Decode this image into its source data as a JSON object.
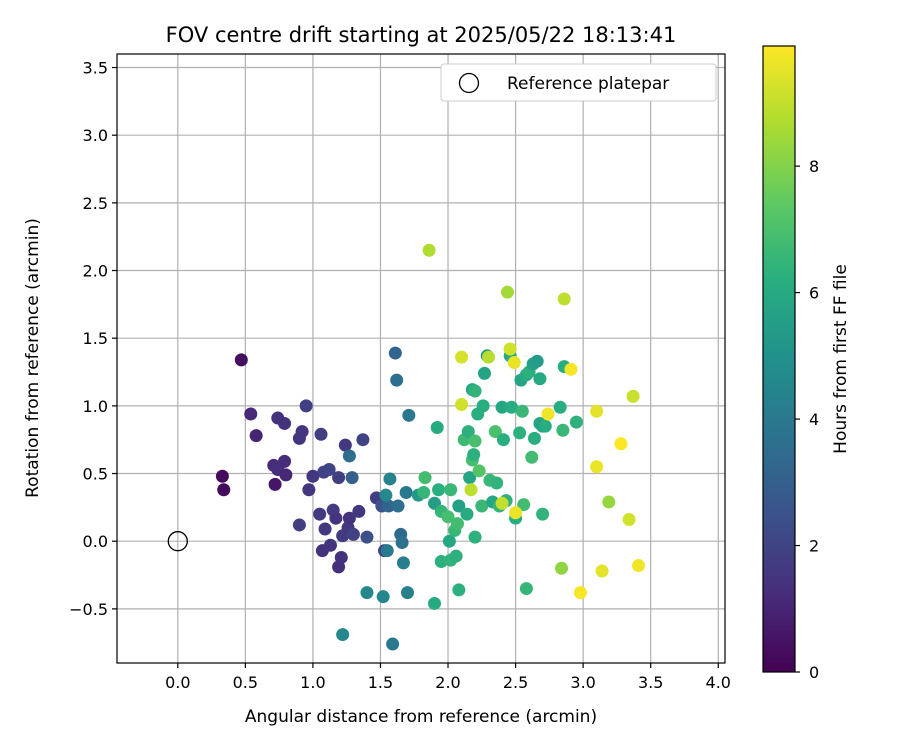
{
  "chart_data": {
    "type": "scatter",
    "title": "FOV centre drift starting at 2025/05/22 18:13:41",
    "xlabel": "Angular distance from reference (arcmin)",
    "ylabel": "Rotation from reference (arcmin)",
    "xlim": [
      -0.45,
      4.05
    ],
    "ylim": [
      -0.9,
      3.6
    ],
    "xticks": [
      0.0,
      0.5,
      1.0,
      1.5,
      2.0,
      2.5,
      3.0,
      3.5,
      4.0
    ],
    "xtick_labels": [
      "0.0",
      "0.5",
      "1.0",
      "1.5",
      "2.0",
      "2.5",
      "3.0",
      "3.5",
      "4.0"
    ],
    "yticks": [
      -0.5,
      0.0,
      0.5,
      1.0,
      1.5,
      2.0,
      2.5,
      3.0,
      3.5
    ],
    "ytick_labels": [
      "−0.5",
      "0.0",
      "0.5",
      "1.0",
      "1.5",
      "2.0",
      "2.5",
      "3.0",
      "3.5"
    ],
    "grid": true,
    "legend": {
      "placement": "top-right",
      "entries": [
        "Reference platepar"
      ]
    },
    "reference_point": {
      "x": 0.0,
      "y": 0.0
    },
    "colorbar": {
      "label": "Hours from first FF file",
      "range": [
        0,
        9.9
      ],
      "ticks": [
        0,
        2,
        4,
        6,
        8
      ],
      "tick_labels": [
        "0",
        "2",
        "4",
        "6",
        "8"
      ],
      "colormap": "viridis"
    },
    "points": [
      {
        "x": 0.33,
        "y": 0.48,
        "c": 0.3
      },
      {
        "x": 0.34,
        "y": 0.38,
        "c": 0.3
      },
      {
        "x": 0.47,
        "y": 1.34,
        "c": 0.4
      },
      {
        "x": 0.72,
        "y": 0.42,
        "c": 0.6
      },
      {
        "x": 0.54,
        "y": 0.94,
        "c": 1.1
      },
      {
        "x": 0.58,
        "y": 0.78,
        "c": 1.0
      },
      {
        "x": 0.71,
        "y": 0.56,
        "c": 1.2
      },
      {
        "x": 0.74,
        "y": 0.53,
        "c": 1.3
      },
      {
        "x": 0.74,
        "y": 0.91,
        "c": 1.4
      },
      {
        "x": 0.79,
        "y": 0.87,
        "c": 1.4
      },
      {
        "x": 0.8,
        "y": 0.49,
        "c": 1.1
      },
      {
        "x": 0.79,
        "y": 0.59,
        "c": 1.2
      },
      {
        "x": 0.9,
        "y": 0.76,
        "c": 1.5
      },
      {
        "x": 0.92,
        "y": 0.81,
        "c": 1.5
      },
      {
        "x": 0.95,
        "y": 1.0,
        "c": 1.8
      },
      {
        "x": 0.97,
        "y": 0.38,
        "c": 1.5
      },
      {
        "x": 1.0,
        "y": 0.48,
        "c": 1.6
      },
      {
        "x": 1.05,
        "y": 0.2,
        "c": 1.7
      },
      {
        "x": 1.06,
        "y": 0.79,
        "c": 1.8
      },
      {
        "x": 1.07,
        "y": -0.07,
        "c": 1.4
      },
      {
        "x": 1.08,
        "y": 0.51,
        "c": 1.9
      },
      {
        "x": 1.09,
        "y": 0.09,
        "c": 1.6
      },
      {
        "x": 1.12,
        "y": 0.53,
        "c": 2.0
      },
      {
        "x": 1.13,
        "y": -0.03,
        "c": 1.5
      },
      {
        "x": 1.15,
        "y": 0.23,
        "c": 1.7
      },
      {
        "x": 1.17,
        "y": 0.17,
        "c": 1.5
      },
      {
        "x": 1.19,
        "y": 0.47,
        "c": 1.8
      },
      {
        "x": 1.19,
        "y": -0.19,
        "c": 1.3
      },
      {
        "x": 1.21,
        "y": -0.12,
        "c": 1.4
      },
      {
        "x": 1.22,
        "y": 0.04,
        "c": 1.7
      },
      {
        "x": 1.24,
        "y": 0.71,
        "c": 1.6
      },
      {
        "x": 1.26,
        "y": 0.1,
        "c": 1.6
      },
      {
        "x": 1.27,
        "y": 0.17,
        "c": 1.4
      },
      {
        "x": 1.3,
        "y": 0.05,
        "c": 1.9
      },
      {
        "x": 1.34,
        "y": 0.22,
        "c": 1.6
      },
      {
        "x": 1.37,
        "y": 0.75,
        "c": 2.0
      },
      {
        "x": 1.4,
        "y": 0.03,
        "c": 2.4
      },
      {
        "x": 1.47,
        "y": 0.32,
        "c": 1.8
      },
      {
        "x": 1.51,
        "y": 0.26,
        "c": 2.5
      },
      {
        "x": 1.53,
        "y": -0.07,
        "c": 1.9
      },
      {
        "x": 0.9,
        "y": 0.12,
        "c": 1.8
      },
      {
        "x": 1.27,
        "y": 0.63,
        "c": 3.5
      },
      {
        "x": 1.29,
        "y": 0.47,
        "c": 3.0
      },
      {
        "x": 1.55,
        "y": -0.07,
        "c": 4.0
      },
      {
        "x": 1.56,
        "y": 0.26,
        "c": 3.2
      },
      {
        "x": 1.57,
        "y": 0.46,
        "c": 4.4
      },
      {
        "x": 1.61,
        "y": 1.39,
        "c": 3.2
      },
      {
        "x": 1.62,
        "y": 1.19,
        "c": 3.6
      },
      {
        "x": 1.63,
        "y": 0.26,
        "c": 3.6
      },
      {
        "x": 1.65,
        "y": 0.05,
        "c": 3.4
      },
      {
        "x": 1.66,
        "y": -0.01,
        "c": 3.7
      },
      {
        "x": 1.67,
        "y": -0.16,
        "c": 4.2
      },
      {
        "x": 1.69,
        "y": 0.36,
        "c": 4.0
      },
      {
        "x": 1.7,
        "y": -0.38,
        "c": 4.3
      },
      {
        "x": 1.71,
        "y": 0.93,
        "c": 3.9
      },
      {
        "x": 1.59,
        "y": -0.76,
        "c": 4.0
      },
      {
        "x": 1.52,
        "y": -0.41,
        "c": 4.5
      },
      {
        "x": 1.4,
        "y": -0.38,
        "c": 4.6
      },
      {
        "x": 1.22,
        "y": -0.69,
        "c": 4.6
      },
      {
        "x": 1.54,
        "y": 0.34,
        "c": 4.6
      },
      {
        "x": 1.78,
        "y": 0.34,
        "c": 5.2
      },
      {
        "x": 1.82,
        "y": 0.36,
        "c": 6.5
      },
      {
        "x": 1.83,
        "y": 0.47,
        "c": 6.8
      },
      {
        "x": 1.9,
        "y": -0.46,
        "c": 6.0
      },
      {
        "x": 1.9,
        "y": 0.28,
        "c": 5.5
      },
      {
        "x": 1.92,
        "y": 0.84,
        "c": 6.0
      },
      {
        "x": 1.93,
        "y": 0.38,
        "c": 6.2
      },
      {
        "x": 1.95,
        "y": 0.22,
        "c": 6.5
      },
      {
        "x": 1.95,
        "y": -0.15,
        "c": 6.3
      },
      {
        "x": 2.0,
        "y": 0.18,
        "c": 6.9
      },
      {
        "x": 2.01,
        "y": 0.0,
        "c": 5.9
      },
      {
        "x": 2.02,
        "y": 0.38,
        "c": 6.6
      },
      {
        "x": 2.02,
        "y": -0.14,
        "c": 6.4
      },
      {
        "x": 2.05,
        "y": 0.08,
        "c": 6.6
      },
      {
        "x": 2.06,
        "y": -0.11,
        "c": 6.3
      },
      {
        "x": 2.07,
        "y": 0.13,
        "c": 6.8
      },
      {
        "x": 2.08,
        "y": -0.36,
        "c": 6.3
      },
      {
        "x": 2.08,
        "y": 0.26,
        "c": 5.6
      },
      {
        "x": 2.12,
        "y": 0.75,
        "c": 6.7
      },
      {
        "x": 2.14,
        "y": 0.2,
        "c": 6.0
      },
      {
        "x": 2.15,
        "y": 0.81,
        "c": 6.3
      },
      {
        "x": 2.16,
        "y": 0.47,
        "c": 5.8
      },
      {
        "x": 2.18,
        "y": 0.6,
        "c": 6.9
      },
      {
        "x": 2.18,
        "y": 1.12,
        "c": 5.9
      },
      {
        "x": 2.19,
        "y": 0.64,
        "c": 6.3
      },
      {
        "x": 2.2,
        "y": 0.74,
        "c": 6.9
      },
      {
        "x": 2.2,
        "y": 0.03,
        "c": 6.3
      },
      {
        "x": 2.2,
        "y": 1.11,
        "c": 6.4
      },
      {
        "x": 2.22,
        "y": 0.94,
        "c": 6.2
      },
      {
        "x": 2.23,
        "y": 0.52,
        "c": 7.2
      },
      {
        "x": 2.25,
        "y": 0.26,
        "c": 6.6
      },
      {
        "x": 2.26,
        "y": 1.0,
        "c": 6.2
      },
      {
        "x": 2.27,
        "y": 1.24,
        "c": 5.7
      },
      {
        "x": 2.29,
        "y": 1.37,
        "c": 5.3
      },
      {
        "x": 2.31,
        "y": 0.45,
        "c": 6.6
      },
      {
        "x": 2.33,
        "y": 0.29,
        "c": 5.9
      },
      {
        "x": 2.35,
        "y": 0.81,
        "c": 7.0
      },
      {
        "x": 2.36,
        "y": 0.43,
        "c": 6.4
      },
      {
        "x": 2.38,
        "y": 0.26,
        "c": 6.5
      },
      {
        "x": 2.4,
        "y": 0.99,
        "c": 5.9
      },
      {
        "x": 2.41,
        "y": 0.75,
        "c": 6.2
      },
      {
        "x": 2.43,
        "y": 0.3,
        "c": 6.3
      },
      {
        "x": 2.46,
        "y": 1.37,
        "c": 6.0
      },
      {
        "x": 2.47,
        "y": 0.99,
        "c": 6.1
      },
      {
        "x": 2.5,
        "y": 0.17,
        "c": 6.1
      },
      {
        "x": 2.53,
        "y": 0.8,
        "c": 6.3
      },
      {
        "x": 2.54,
        "y": 1.19,
        "c": 5.8
      },
      {
        "x": 2.55,
        "y": 0.96,
        "c": 6.6
      },
      {
        "x": 2.56,
        "y": 0.27,
        "c": 6.8
      },
      {
        "x": 2.58,
        "y": 1.23,
        "c": 6.1
      },
      {
        "x": 2.58,
        "y": -0.35,
        "c": 6.5
      },
      {
        "x": 2.6,
        "y": 1.25,
        "c": 6.3
      },
      {
        "x": 2.62,
        "y": 0.62,
        "c": 6.8
      },
      {
        "x": 2.63,
        "y": 1.31,
        "c": 5.6
      },
      {
        "x": 2.64,
        "y": 0.76,
        "c": 6.2
      },
      {
        "x": 2.66,
        "y": 1.33,
        "c": 5.4
      },
      {
        "x": 2.68,
        "y": 1.2,
        "c": 6.0
      },
      {
        "x": 2.68,
        "y": 0.87,
        "c": 5.8
      },
      {
        "x": 2.7,
        "y": 0.2,
        "c": 6.4
      },
      {
        "x": 2.7,
        "y": 0.85,
        "c": 5.6
      },
      {
        "x": 2.72,
        "y": 0.85,
        "c": 6.1
      },
      {
        "x": 2.83,
        "y": 0.99,
        "c": 6.1
      },
      {
        "x": 2.85,
        "y": 0.82,
        "c": 6.6
      },
      {
        "x": 2.86,
        "y": 1.29,
        "c": 6.2
      },
      {
        "x": 2.95,
        "y": 0.88,
        "c": 6.3
      },
      {
        "x": 2.3,
        "y": 1.36,
        "c": 8.8
      },
      {
        "x": 2.44,
        "y": 1.84,
        "c": 8.5
      },
      {
        "x": 2.46,
        "y": 1.42,
        "c": 9.2
      },
      {
        "x": 2.49,
        "y": 1.32,
        "c": 9.6
      },
      {
        "x": 2.5,
        "y": 0.21,
        "c": 9.6
      },
      {
        "x": 2.74,
        "y": 0.94,
        "c": 9.7
      },
      {
        "x": 2.86,
        "y": 1.79,
        "c": 8.9
      },
      {
        "x": 2.91,
        "y": 1.27,
        "c": 9.8
      },
      {
        "x": 2.84,
        "y": -0.2,
        "c": 8.2
      },
      {
        "x": 2.98,
        "y": -0.38,
        "c": 9.8
      },
      {
        "x": 3.1,
        "y": 0.96,
        "c": 9.5
      },
      {
        "x": 3.1,
        "y": 0.55,
        "c": 9.6
      },
      {
        "x": 3.14,
        "y": -0.22,
        "c": 9.5
      },
      {
        "x": 3.19,
        "y": 0.29,
        "c": 8.3
      },
      {
        "x": 3.28,
        "y": 0.72,
        "c": 9.9
      },
      {
        "x": 3.34,
        "y": 0.16,
        "c": 9.2
      },
      {
        "x": 3.37,
        "y": 1.07,
        "c": 9.1
      },
      {
        "x": 3.41,
        "y": -0.18,
        "c": 9.7
      },
      {
        "x": 1.86,
        "y": 2.15,
        "c": 8.7
      },
      {
        "x": 2.1,
        "y": 1.36,
        "c": 9.3
      },
      {
        "x": 2.1,
        "y": 1.01,
        "c": 9.2
      },
      {
        "x": 2.17,
        "y": 0.38,
        "c": 8.9
      },
      {
        "x": 2.4,
        "y": 0.28,
        "c": 9.0
      }
    ]
  }
}
